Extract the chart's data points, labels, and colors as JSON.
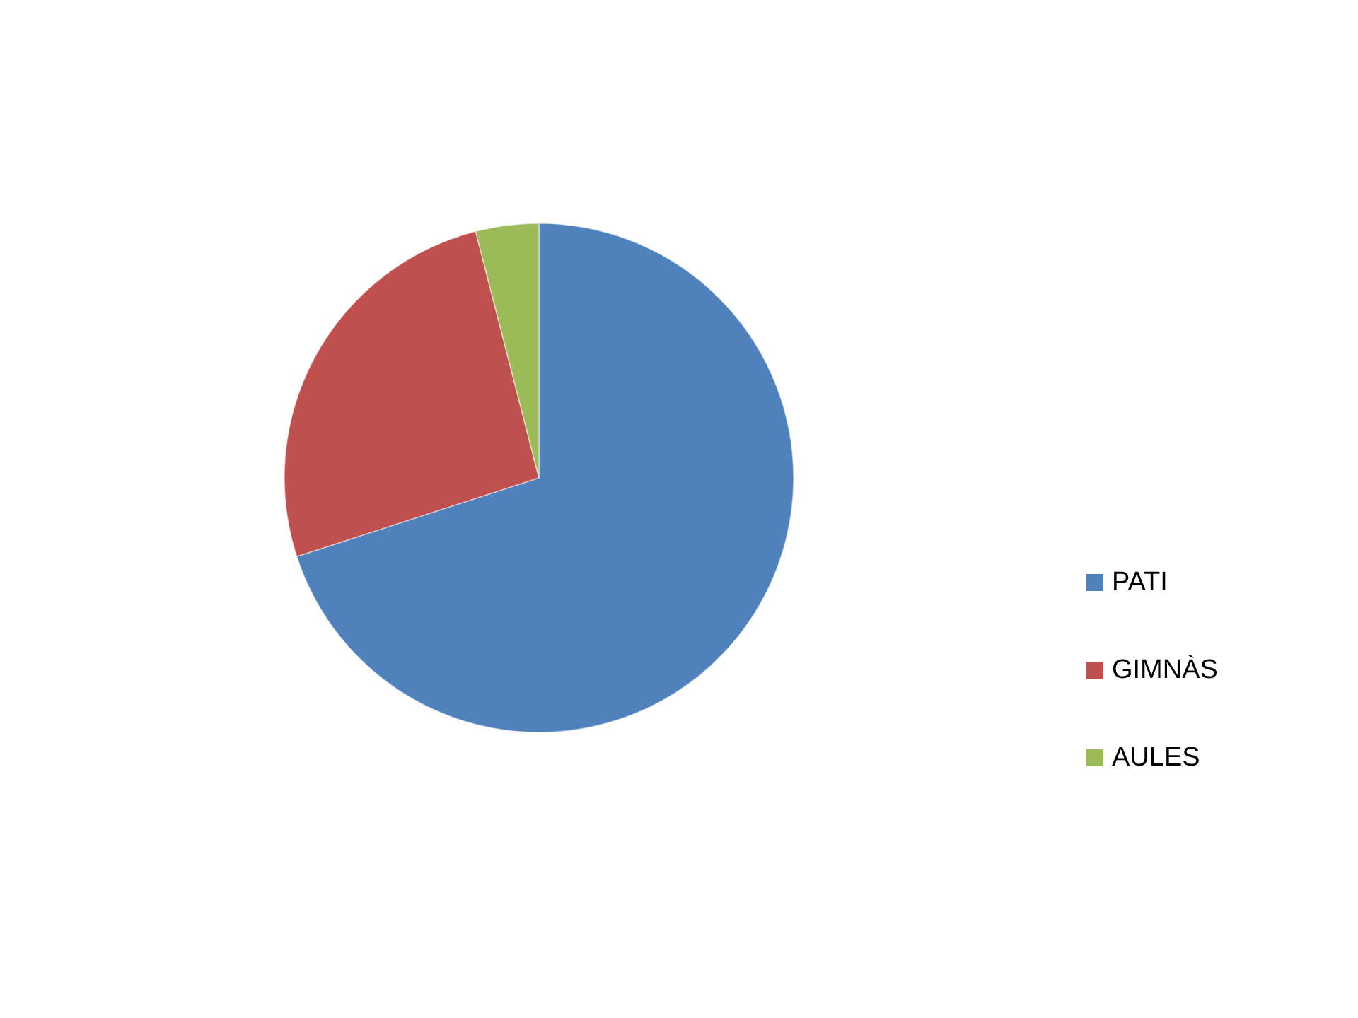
{
  "chart_data": {
    "type": "pie",
    "categories": [
      "PATI",
      "GIMNÀS",
      "AULES"
    ],
    "values": [
      70,
      26,
      4
    ],
    "colors": [
      "#4f81bd",
      "#c0504d",
      "#9bbb59"
    ],
    "legend": "right"
  }
}
